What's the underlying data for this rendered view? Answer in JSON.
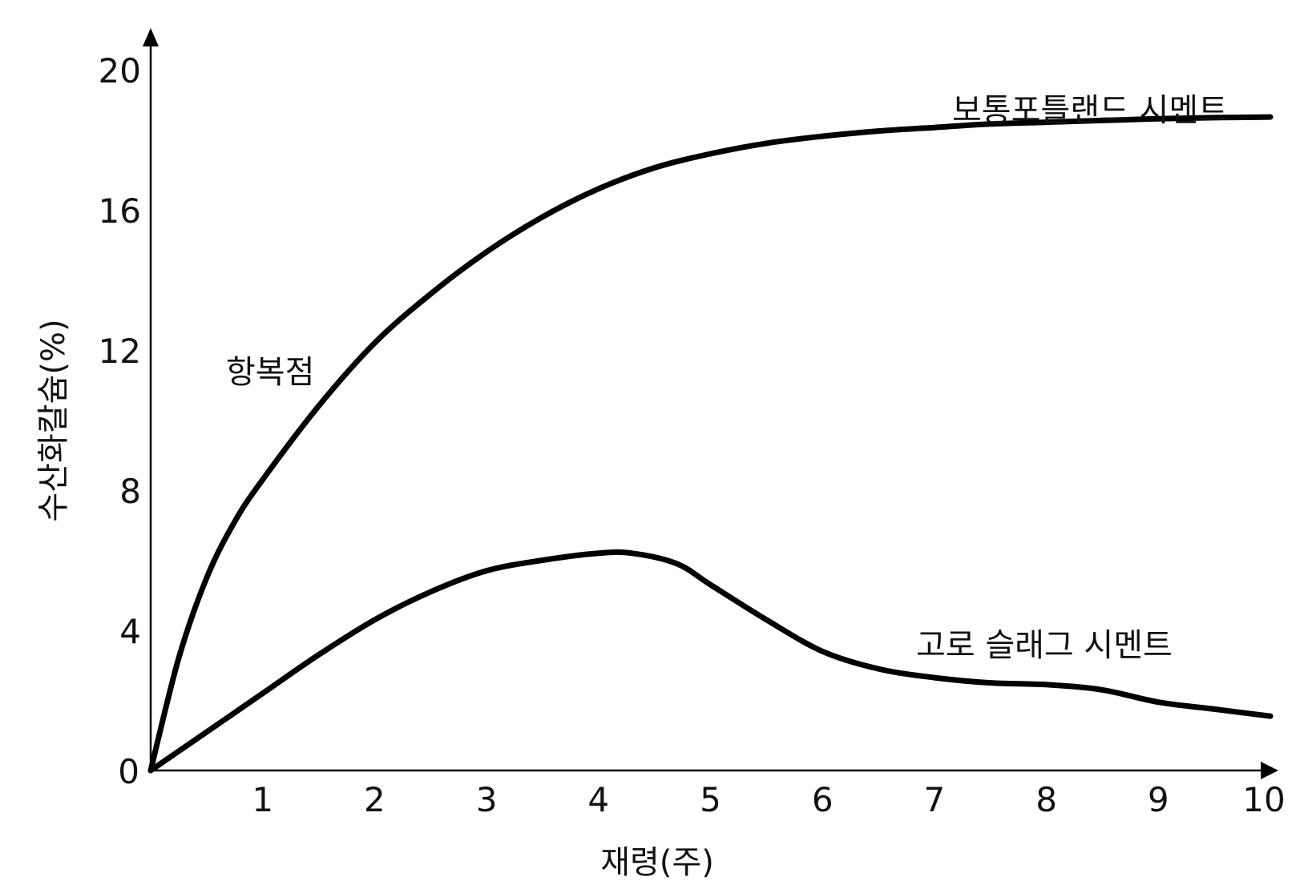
{
  "chart_data": {
    "type": "line",
    "xlabel": "재령(주)",
    "ylabel": "수산화칼슘(%)",
    "xlim": [
      0,
      10
    ],
    "ylim": [
      0,
      20
    ],
    "x_ticks": [
      1,
      2,
      3,
      4,
      5,
      6,
      7,
      8,
      9,
      10
    ],
    "y_ticks": [
      0,
      4,
      8,
      12,
      16,
      20
    ],
    "grid": false,
    "annotations": [
      {
        "text": "항복점"
      }
    ],
    "series": [
      {
        "name": "보통포틀랜드 시멘트",
        "x": [
          0,
          0.25,
          0.5,
          0.75,
          1,
          1.5,
          2,
          2.5,
          3,
          3.5,
          4,
          4.5,
          5,
          5.5,
          6,
          6.5,
          7,
          7.5,
          8,
          8.5,
          9,
          9.5,
          10
        ],
        "y": [
          0,
          3.2,
          5.5,
          7.1,
          8.3,
          10.4,
          12.2,
          13.6,
          14.8,
          15.8,
          16.6,
          17.2,
          17.6,
          17.9,
          18.1,
          18.25,
          18.35,
          18.45,
          18.5,
          18.55,
          18.6,
          18.63,
          18.65
        ]
      },
      {
        "name": "고로 슬래그 시멘트",
        "x": [
          0,
          0.5,
          1,
          1.5,
          2,
          2.5,
          3,
          3.5,
          4,
          4.3,
          4.7,
          5,
          5.5,
          6,
          6.5,
          7,
          7.5,
          8,
          8.5,
          9,
          9.5,
          10
        ],
        "y": [
          0,
          1.1,
          2.2,
          3.3,
          4.3,
          5.1,
          5.7,
          6.0,
          6.2,
          6.2,
          5.9,
          5.3,
          4.3,
          3.4,
          2.9,
          2.65,
          2.5,
          2.45,
          2.3,
          1.95,
          1.75,
          1.55
        ]
      }
    ]
  }
}
